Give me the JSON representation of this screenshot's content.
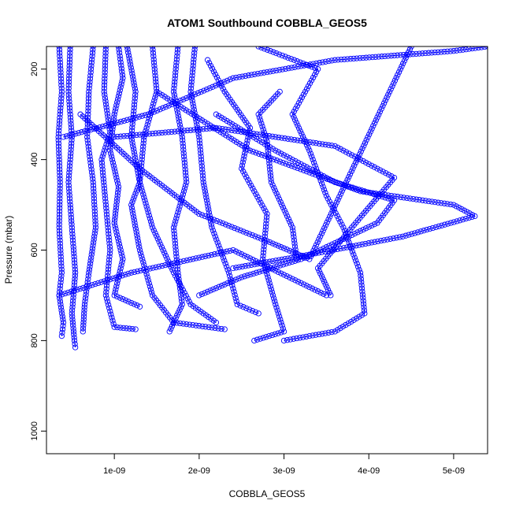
{
  "chart_data": {
    "type": "scatter",
    "title": "ATOM1 Southbound COBBLA_GEOS5",
    "xlabel": "COBBLA_GEOS5",
    "ylabel": "Pressure (mbar)",
    "xlim": [
      2e-10,
      5.4e-09
    ],
    "ylim": [
      1050,
      150
    ],
    "y_reversed": true,
    "x_ticks": [
      1e-09,
      2e-09,
      3e-09,
      4e-09,
      5e-09
    ],
    "x_tick_labels": [
      "1e-09",
      "2e-09",
      "3e-09",
      "4e-09",
      "5e-09"
    ],
    "y_ticks": [
      200,
      400,
      600,
      800,
      1000
    ],
    "y_tick_labels": [
      "200",
      "400",
      "600",
      "800",
      "1000"
    ],
    "grid": false,
    "legend": "none",
    "marker": "open-circle",
    "color": "#0000ff",
    "series": [
      {
        "points": [
          [
            3.5e-10,
            150
          ],
          [
            3.8e-10,
            250
          ],
          [
            3.4e-10,
            350
          ],
          [
            3.6e-10,
            450
          ],
          [
            3.5e-10,
            550
          ],
          [
            3.8e-10,
            650
          ],
          [
            3.5e-10,
            700
          ],
          [
            4e-10,
            760
          ],
          [
            3.8e-10,
            790
          ]
        ]
      },
      {
        "points": [
          [
            4.8e-10,
            150
          ],
          [
            4.6e-10,
            250
          ],
          [
            5e-10,
            350
          ],
          [
            4.6e-10,
            450
          ],
          [
            5e-10,
            550
          ],
          [
            5.4e-10,
            650
          ],
          [
            5e-10,
            740
          ],
          [
            5.3e-10,
            800
          ],
          [
            5.4e-10,
            815
          ]
        ]
      },
      {
        "points": [
          [
            7.5e-10,
            150
          ],
          [
            7e-10,
            250
          ],
          [
            6.8e-10,
            350
          ],
          [
            7.5e-10,
            450
          ],
          [
            7.8e-10,
            550
          ],
          [
            7e-10,
            650
          ],
          [
            6.5e-10,
            720
          ],
          [
            6.3e-10,
            780
          ]
        ]
      },
      {
        "points": [
          [
            9e-10,
            150
          ],
          [
            8.8e-10,
            250
          ],
          [
            9.5e-10,
            340
          ],
          [
            8.5e-10,
            400
          ],
          [
            9e-10,
            500
          ],
          [
            9.5e-10,
            600
          ],
          [
            9e-10,
            700
          ],
          [
            1e-09,
            770
          ],
          [
            1.25e-09,
            775
          ]
        ]
      },
      {
        "points": [
          [
            1.05e-09,
            150
          ],
          [
            1.1e-09,
            220
          ],
          [
            1e-09,
            300
          ],
          [
            9.5e-10,
            380
          ],
          [
            1.05e-09,
            460
          ],
          [
            1e-09,
            540
          ],
          [
            1.1e-09,
            620
          ],
          [
            1e-09,
            700
          ],
          [
            1.3e-09,
            725
          ]
        ]
      },
      {
        "points": [
          [
            1.15e-09,
            150
          ],
          [
            1.25e-09,
            250
          ],
          [
            1.2e-09,
            350
          ],
          [
            1.3e-09,
            450
          ],
          [
            1.2e-09,
            500
          ],
          [
            1.3e-09,
            600
          ],
          [
            1.45e-09,
            700
          ],
          [
            1.7e-09,
            760
          ],
          [
            2.3e-09,
            775
          ]
        ]
      },
      {
        "points": [
          [
            1.45e-09,
            150
          ],
          [
            1.5e-09,
            250
          ],
          [
            1.35e-09,
            350
          ],
          [
            1.3e-09,
            450
          ],
          [
            1.45e-09,
            550
          ],
          [
            1.7e-09,
            650
          ],
          [
            1.9e-09,
            720
          ],
          [
            2.2e-09,
            760
          ]
        ]
      },
      {
        "points": [
          [
            1.75e-09,
            150
          ],
          [
            1.7e-09,
            250
          ],
          [
            1.8e-09,
            350
          ],
          [
            1.85e-09,
            450
          ],
          [
            1.7e-09,
            550
          ],
          [
            1.75e-09,
            650
          ],
          [
            1.8e-09,
            720
          ],
          [
            1.65e-09,
            780
          ]
        ]
      },
      {
        "points": [
          [
            1.95e-09,
            150
          ],
          [
            1.9e-09,
            250
          ],
          [
            2e-09,
            350
          ],
          [
            2.05e-09,
            450
          ],
          [
            2.15e-09,
            550
          ],
          [
            2.35e-09,
            650
          ],
          [
            2.45e-09,
            720
          ],
          [
            2.7e-09,
            740
          ]
        ]
      },
      {
        "points": [
          [
            2.1e-09,
            180
          ],
          [
            2.3e-09,
            250
          ],
          [
            2.6e-09,
            330
          ],
          [
            2.5e-09,
            420
          ],
          [
            2.8e-09,
            520
          ],
          [
            2.75e-09,
            620
          ],
          [
            2.9e-09,
            720
          ],
          [
            3e-09,
            780
          ],
          [
            2.65e-09,
            800
          ]
        ]
      },
      {
        "points": [
          [
            2.95e-09,
            250
          ],
          [
            2.7e-09,
            300
          ],
          [
            2.8e-09,
            360
          ],
          [
            2.85e-09,
            450
          ],
          [
            3.1e-09,
            550
          ],
          [
            3.15e-09,
            620
          ]
        ]
      },
      {
        "points": [
          [
            2.7e-09,
            150
          ],
          [
            3.4e-09,
            200
          ],
          [
            3.1e-09,
            300
          ],
          [
            3.3e-09,
            380
          ],
          [
            3.5e-09,
            480
          ],
          [
            3.7e-09,
            550
          ],
          [
            3.9e-09,
            650
          ],
          [
            3.95e-09,
            740
          ],
          [
            3.6e-09,
            780
          ],
          [
            3e-09,
            800
          ]
        ]
      },
      {
        "points": [
          [
            2.2e-09,
            300
          ],
          [
            2.9e-09,
            380
          ],
          [
            3.6e-09,
            450
          ],
          [
            4.3e-09,
            490
          ],
          [
            4.1e-09,
            540
          ],
          [
            3.2e-09,
            620
          ],
          [
            2.5e-09,
            660
          ],
          [
            2e-09,
            700
          ]
        ]
      },
      {
        "points": [
          [
            1.5e-09,
            250
          ],
          [
            2.6e-09,
            380
          ],
          [
            3.9e-09,
            470
          ],
          [
            5e-09,
            500
          ],
          [
            5.25e-09,
            525
          ],
          [
            4.4e-09,
            570
          ],
          [
            3.3e-09,
            610
          ],
          [
            2.4e-09,
            640
          ]
        ]
      },
      {
        "points": [
          [
            1e-09,
            350
          ],
          [
            2.2e-09,
            330
          ],
          [
            3.6e-09,
            370
          ],
          [
            4.3e-09,
            440
          ],
          [
            3.8e-09,
            550
          ],
          [
            3.4e-09,
            640
          ],
          [
            3.55e-09,
            700
          ]
        ]
      },
      {
        "points": [
          [
            6e-10,
            300
          ],
          [
            1.3e-09,
            420
          ],
          [
            2e-09,
            520
          ],
          [
            2.8e-09,
            580
          ],
          [
            3.3e-09,
            620
          ],
          [
            4.5e-09,
            150
          ]
        ]
      },
      {
        "points": [
          [
            4e-10,
            350
          ],
          [
            1.4e-09,
            300
          ],
          [
            2.4e-09,
            220
          ],
          [
            3.6e-09,
            180
          ],
          [
            5e-09,
            160
          ],
          [
            5.4e-09,
            150
          ]
        ]
      },
      {
        "points": [
          [
            3.5e-10,
            700
          ],
          [
            1.2e-09,
            650
          ],
          [
            2.4e-09,
            600
          ],
          [
            3.5e-09,
            700
          ]
        ]
      }
    ]
  }
}
